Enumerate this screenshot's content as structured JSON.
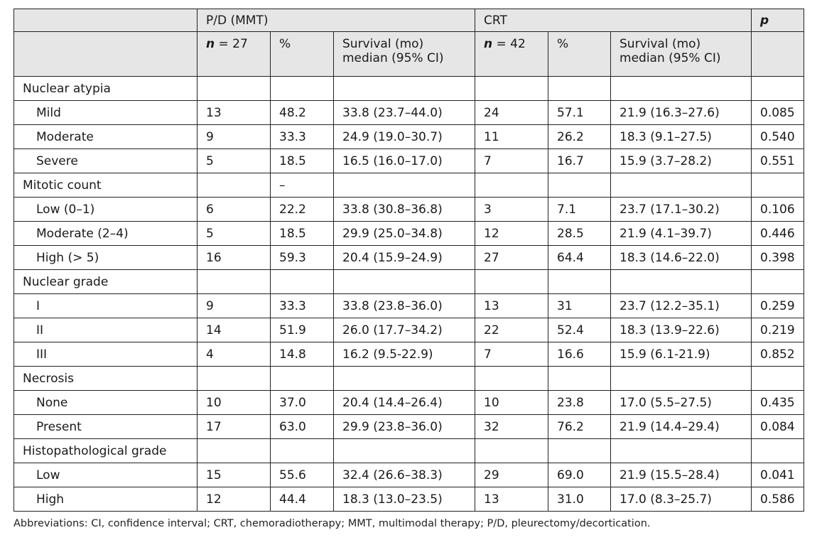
{
  "table": {
    "header": {
      "group1": "P/D (MMT)",
      "group2": "CRT",
      "p_label": "p",
      "n1_prefix": "n",
      "n1_value": " = 27",
      "n2_prefix": "n",
      "n2_value": " = 42",
      "pct": "%",
      "surv_line1": "Survival (mo)",
      "surv_line2": "median (95% CI)"
    },
    "rows": [
      {
        "type": "section",
        "label": "Nuclear atypia"
      },
      {
        "type": "data",
        "label": "Mild",
        "pd_n": "13",
        "pd_pct": "48.2",
        "pd_surv": "33.8 (23.7–44.0)",
        "crt_n": "24",
        "crt_pct": "57.1",
        "crt_surv": "21.9 (16.3–27.6)",
        "p": "0.085"
      },
      {
        "type": "data",
        "label": "Moderate",
        "pd_n": "9",
        "pd_pct": "33.3",
        "pd_surv": "24.9 (19.0–30.7)",
        "crt_n": "11",
        "crt_pct": "26.2",
        "crt_surv": "18.3 (9.1–27.5)",
        "p": "0.540"
      },
      {
        "type": "data",
        "label": "Severe",
        "pd_n": "5",
        "pd_pct": "18.5",
        "pd_surv": "16.5 (16.0–17.0)",
        "crt_n": "7",
        "crt_pct": "16.7",
        "crt_surv": "15.9 (3.7–28.2)",
        "p": "0.551"
      },
      {
        "type": "section",
        "label": "Mitotic count",
        "pd_pct": "–"
      },
      {
        "type": "data",
        "label": "Low (0–1)",
        "pd_n": "6",
        "pd_pct": "22.2",
        "pd_surv": "33.8 (30.8–36.8)",
        "crt_n": "3",
        "crt_pct": "7.1",
        "crt_surv": "23.7 (17.1–30.2)",
        "p": "0.106"
      },
      {
        "type": "data",
        "label": "Moderate (2–4)",
        "pd_n": "5",
        "pd_pct": "18.5",
        "pd_surv": "29.9 (25.0–34.8)",
        "crt_n": "12",
        "crt_pct": "28.5",
        "crt_surv": "21.9 (4.1–39.7)",
        "p": "0.446"
      },
      {
        "type": "data",
        "label": "High (> 5)",
        "pd_n": "16",
        "pd_pct": "59.3",
        "pd_surv": "20.4 (15.9–24.9)",
        "crt_n": "27",
        "crt_pct": "64.4",
        "crt_surv": "18.3 (14.6–22.0)",
        "p": "0.398"
      },
      {
        "type": "section",
        "label": "Nuclear grade"
      },
      {
        "type": "data",
        "label": "I",
        "pd_n": "9",
        "pd_pct": "33.3",
        "pd_surv": "33.8 (23.8–36.0)",
        "crt_n": "13",
        "crt_pct": "31",
        "crt_surv": "23.7 (12.2–35.1)",
        "p": "0.259"
      },
      {
        "type": "data",
        "label": "II",
        "pd_n": "14",
        "pd_pct": "51.9",
        "pd_surv": "26.0 (17.7–34.2)",
        "crt_n": "22",
        "crt_pct": "52.4",
        "crt_surv": "18.3 (13.9–22.6)",
        "p": "0.219"
      },
      {
        "type": "data",
        "label": "III",
        "pd_n": "4",
        "pd_pct": "14.8",
        "pd_surv": "16.2 (9.5-22.9)",
        "crt_n": "7",
        "crt_pct": "16.6",
        "crt_surv": "15.9 (6.1-21.9)",
        "p": "0.852"
      },
      {
        "type": "section",
        "label": "Necrosis"
      },
      {
        "type": "data",
        "label": "None",
        "pd_n": "10",
        "pd_pct": "37.0",
        "pd_surv": "20.4 (14.4–26.4)",
        "crt_n": "10",
        "crt_pct": "23.8",
        "crt_surv": "17.0 (5.5–27.5)",
        "p": "0.435"
      },
      {
        "type": "data",
        "label": "Present",
        "pd_n": "17",
        "pd_pct": "63.0",
        "pd_surv": "29.9 (23.8–36.0)",
        "crt_n": "32",
        "crt_pct": "76.2",
        "crt_surv": "21.9 (14.4–29.4)",
        "p": "0.084"
      },
      {
        "type": "section",
        "label": "Histopathological grade"
      },
      {
        "type": "data",
        "label": "Low",
        "pd_n": "15",
        "pd_pct": "55.6",
        "pd_surv": "32.4 (26.6–38.3)",
        "crt_n": "29",
        "crt_pct": "69.0",
        "crt_surv": "21.9 (15.5–28.4)",
        "p": "0.041"
      },
      {
        "type": "data",
        "label": "High",
        "pd_n": "12",
        "pd_pct": "44.4",
        "pd_surv": "18.3 (13.0–23.5)",
        "crt_n": "13",
        "crt_pct": "31.0",
        "crt_surv": "17.0 (8.3–25.7)",
        "p": "0.586"
      }
    ]
  },
  "footnote": "Abbreviations: CI, confidence interval; CRT, chemoradiotherapy; MMT, multimodal therapy; P/D, pleurectomy/decortication.",
  "colors": {
    "header_bg": "#e6e6e6",
    "border": "#222222"
  }
}
